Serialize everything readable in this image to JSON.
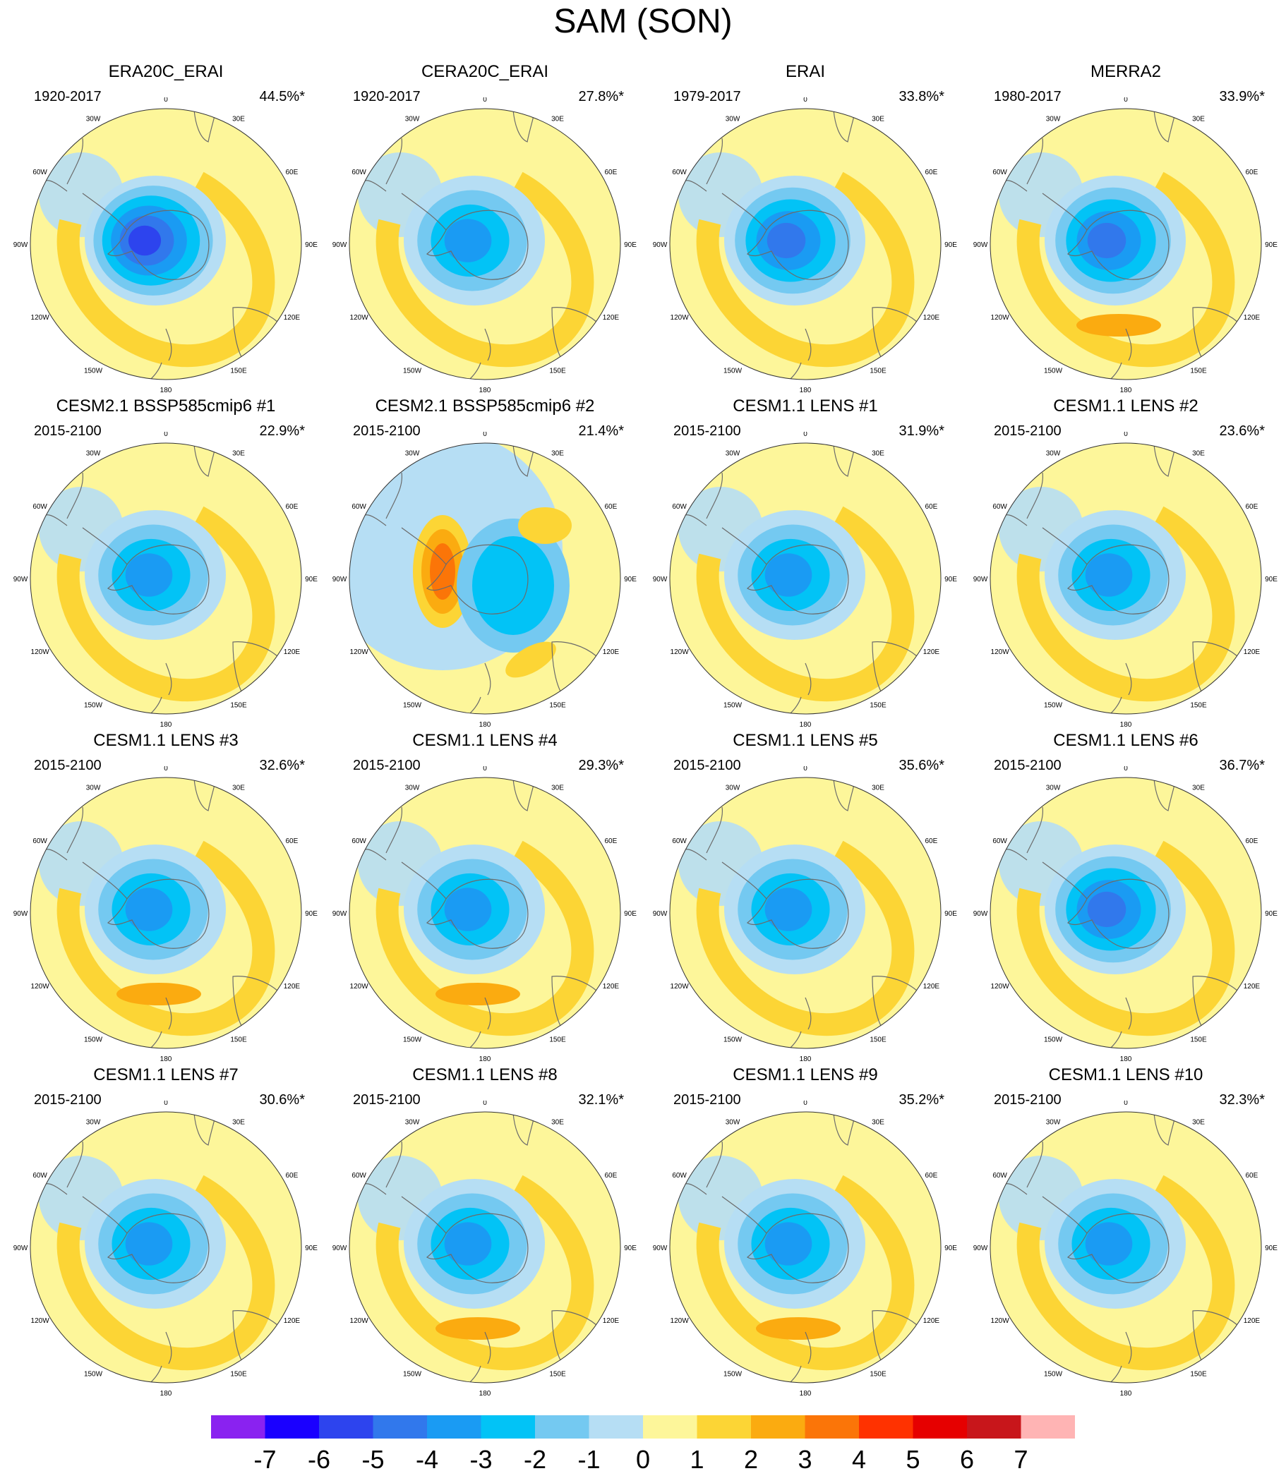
{
  "figure": {
    "title": "SAM (SON)"
  },
  "colors": {
    "land_line": "#6b6b6b",
    "frame": "#333333",
    "neutral": "#fdf69a"
  },
  "longitude_labels": [
    "0",
    "30E",
    "60E",
    "90E",
    "120E",
    "150E",
    "180",
    "150W",
    "120W",
    "90W",
    "60W",
    "30W"
  ],
  "chart_data": {
    "type": "heatmap",
    "projection": "south polar stereographic",
    "title": "SAM (SON)",
    "panels": [
      {
        "title": "ERA20C_ERAI",
        "period": "1920-2017",
        "variance": "44.5%*",
        "amp": 5.5,
        "mode": "annular",
        "ridge": 1.6
      },
      {
        "title": "CERA20C_ERAI",
        "period": "1920-2017",
        "variance": "27.8%*",
        "amp": 3.4,
        "mode": "annular",
        "ridge": 1.8
      },
      {
        "title": "ERAI",
        "period": "1979-2017",
        "variance": "33.8%*",
        "amp": 4.2,
        "mode": "annular",
        "ridge": 2.1
      },
      {
        "title": "MERRA2",
        "period": "1980-2017",
        "variance": "33.9%*",
        "amp": 4.3,
        "mode": "annular",
        "ridge": 2.3
      },
      {
        "title": "CESM2.1 BSSP585cmip6 #1",
        "period": "2015-2100",
        "variance": "22.9%*",
        "amp": 3.3,
        "mode": "annular",
        "ridge": 2.0
      },
      {
        "title": "CESM2.1 BSSP585cmip6 #2",
        "period": "2015-2100",
        "variance": "21.4%*",
        "amp": 3.0,
        "mode": "dipole",
        "ridge": 3.4
      },
      {
        "title": "CESM1.1 LENS #1",
        "period": "2015-2100",
        "variance": "31.9%*",
        "amp": 3.5,
        "mode": "annular",
        "ridge": 1.6
      },
      {
        "title": "CESM1.1 LENS #2",
        "period": "2015-2100",
        "variance": "23.6%*",
        "amp": 3.2,
        "mode": "annular",
        "ridge": 1.7
      },
      {
        "title": "CESM1.1 LENS #3",
        "period": "2015-2100",
        "variance": "32.6%*",
        "amp": 3.6,
        "mode": "annular",
        "ridge": 2.4
      },
      {
        "title": "CESM1.1 LENS #4",
        "period": "2015-2100",
        "variance": "29.3%*",
        "amp": 3.4,
        "mode": "annular",
        "ridge": 2.3
      },
      {
        "title": "CESM1.1 LENS #5",
        "period": "2015-2100",
        "variance": "35.6%*",
        "amp": 4.0,
        "mode": "annular",
        "ridge": 2.1
      },
      {
        "title": "CESM1.1 LENS #6",
        "period": "2015-2100",
        "variance": "36.7%*",
        "amp": 4.1,
        "mode": "annular",
        "ridge": 2.1
      },
      {
        "title": "CESM1.1 LENS #7",
        "period": "2015-2100",
        "variance": "30.6%*",
        "amp": 3.5,
        "mode": "annular",
        "ridge": 1.8
      },
      {
        "title": "CESM1.1 LENS #8",
        "period": "2015-2100",
        "variance": "32.1%*",
        "amp": 3.6,
        "mode": "annular",
        "ridge": 2.3
      },
      {
        "title": "CESM1.1 LENS #9",
        "period": "2015-2100",
        "variance": "35.2%*",
        "amp": 4.0,
        "mode": "annular",
        "ridge": 2.3
      },
      {
        "title": "CESM1.1 LENS #10",
        "period": "2015-2100",
        "variance": "32.3%*",
        "amp": 3.5,
        "mode": "annular",
        "ridge": 1.8
      }
    ],
    "colorbar": {
      "levels": [
        -7,
        -6,
        -5,
        -4,
        -3,
        -2,
        -1,
        0,
        1,
        2,
        3,
        4,
        5,
        6,
        7
      ],
      "colors": [
        "#8a22f0",
        "#1a00ff",
        "#2d44ee",
        "#3178ec",
        "#1a9bf3",
        "#02c3f6",
        "#74c9f1",
        "#b6def4",
        "#fdf69a",
        "#fcd535",
        "#fbab10",
        "#fb7508",
        "#ff3200",
        "#e60000",
        "#c8161b",
        "#ffb4b4"
      ]
    }
  }
}
